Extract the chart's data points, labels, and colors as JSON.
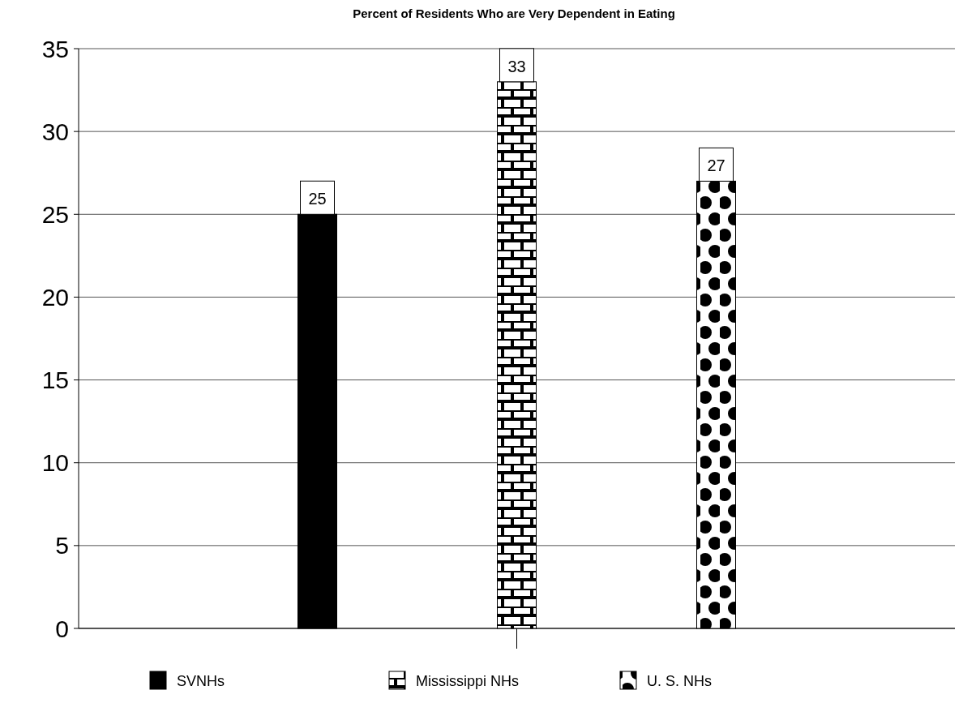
{
  "chart_data": {
    "type": "bar",
    "title": "Percent of Residents Who are Very Dependent in Eating",
    "categories": [
      null
    ],
    "series": [
      {
        "name": "SVNHs",
        "color": "#000000",
        "values": [
          25
        ]
      },
      {
        "name": "Mississippi NHs",
        "color": "#000000",
        "values": [
          33
        ]
      },
      {
        "name": "U. S. NHs",
        "color": "#000000",
        "values": [
          27
        ]
      }
    ],
    "ylim": [
      0,
      35
    ],
    "yticks": [
      0,
      5,
      10,
      15,
      20,
      25,
      30,
      35
    ],
    "grid": "y",
    "legend": "bottom",
    "data_labels": true
  }
}
